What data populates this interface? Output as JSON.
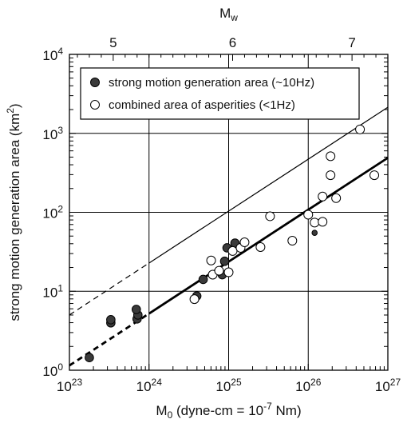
{
  "chart_data": {
    "type": "scatter",
    "title": "",
    "xlabel": {
      "base": "M",
      "sub": "0",
      "rest": " (dyne-cm = 10",
      "sup": "-7",
      "end": " Nm)"
    },
    "ylabel": {
      "text": "strong motion generation area (km",
      "sup": "2",
      "end": ")"
    },
    "top_xlabel": {
      "base": "M",
      "sub": "w"
    },
    "x_scale": "log",
    "y_scale": "log",
    "xlim_log10": [
      23,
      27
    ],
    "ylim_log10": [
      0,
      4
    ],
    "x_ticks": [
      {
        "exp": 23,
        "base": "10",
        "sup": "23"
      },
      {
        "exp": 24,
        "base": "10",
        "sup": "24"
      },
      {
        "exp": 25,
        "base": "10",
        "sup": "25"
      },
      {
        "exp": 26,
        "base": "10",
        "sup": "26"
      },
      {
        "exp": 27,
        "base": "10",
        "sup": "27"
      }
    ],
    "y_ticks": [
      {
        "exp": 0,
        "base": "10",
        "sup": "0"
      },
      {
        "exp": 1,
        "base": "10",
        "sup": "1"
      },
      {
        "exp": 2,
        "base": "10",
        "sup": "2"
      },
      {
        "exp": 3,
        "base": "10",
        "sup": "3"
      },
      {
        "exp": 4,
        "base": "10",
        "sup": "4"
      }
    ],
    "top_ticks": [
      {
        "mw": 5,
        "label": "5"
      },
      {
        "mw": 6,
        "label": "6"
      },
      {
        "mw": 7,
        "label": "7"
      }
    ],
    "grid": true,
    "legend_position": "top-left",
    "series": [
      {
        "name": "strong motion generation area (~10Hz)",
        "marker": "filled-circle",
        "color": "#3a3a3a",
        "points": [
          {
            "x_log10": 23.25,
            "y_log10": 0.16,
            "size": "large"
          },
          {
            "x_log10": 23.52,
            "y_log10": 0.6,
            "size": "large"
          },
          {
            "x_log10": 23.52,
            "y_log10": 0.64,
            "size": "large"
          },
          {
            "x_log10": 23.85,
            "y_log10": 0.65,
            "size": "large"
          },
          {
            "x_log10": 23.86,
            "y_log10": 0.7,
            "size": "large"
          },
          {
            "x_log10": 23.84,
            "y_log10": 0.77,
            "size": "large"
          },
          {
            "x_log10": 24.6,
            "y_log10": 0.94,
            "size": "large"
          },
          {
            "x_log10": 24.68,
            "y_log10": 1.15,
            "size": "large"
          },
          {
            "x_log10": 24.92,
            "y_log10": 1.21,
            "size": "large"
          },
          {
            "x_log10": 24.95,
            "y_log10": 1.38,
            "size": "large"
          },
          {
            "x_log10": 24.98,
            "y_log10": 1.55,
            "size": "large"
          },
          {
            "x_log10": 25.08,
            "y_log10": 1.61,
            "size": "large"
          },
          {
            "x_log10": 26.08,
            "y_log10": 1.74,
            "size": "small"
          },
          {
            "x_log10": 26.3,
            "y_log10": 2.47,
            "size": "small"
          }
        ]
      },
      {
        "name": "combined area of asperities (<1Hz)",
        "marker": "open-circle",
        "color": "#ffffff",
        "points": [
          {
            "x_log10": 24.57,
            "y_log10": 0.9
          },
          {
            "x_log10": 24.78,
            "y_log10": 1.39
          },
          {
            "x_log10": 24.8,
            "y_log10": 1.21
          },
          {
            "x_log10": 24.88,
            "y_log10": 1.26
          },
          {
            "x_log10": 25.0,
            "y_log10": 1.24
          },
          {
            "x_log10": 25.05,
            "y_log10": 1.51
          },
          {
            "x_log10": 25.15,
            "y_log10": 1.55
          },
          {
            "x_log10": 25.2,
            "y_log10": 1.62
          },
          {
            "x_log10": 25.4,
            "y_log10": 1.56
          },
          {
            "x_log10": 25.52,
            "y_log10": 1.95
          },
          {
            "x_log10": 25.8,
            "y_log10": 1.64
          },
          {
            "x_log10": 26.0,
            "y_log10": 1.97
          },
          {
            "x_log10": 26.08,
            "y_log10": 1.87
          },
          {
            "x_log10": 26.18,
            "y_log10": 2.2
          },
          {
            "x_log10": 26.18,
            "y_log10": 1.88
          },
          {
            "x_log10": 26.28,
            "y_log10": 2.71
          },
          {
            "x_log10": 26.28,
            "y_log10": 2.47
          },
          {
            "x_log10": 26.35,
            "y_log10": 2.18
          },
          {
            "x_log10": 26.65,
            "y_log10": 3.05
          },
          {
            "x_log10": 26.83,
            "y_log10": 2.47
          }
        ]
      }
    ],
    "reference_lines": [
      {
        "name": "thin-line",
        "from": [
          23,
          0.7
        ],
        "to": [
          27,
          3.33
        ],
        "solid_from_x": 24.0,
        "width": 1.2
      },
      {
        "name": "thick-line",
        "from": [
          23,
          0.06
        ],
        "to": [
          27,
          2.69
        ],
        "solid_from_x": 24.0,
        "width": 2.8
      }
    ]
  }
}
